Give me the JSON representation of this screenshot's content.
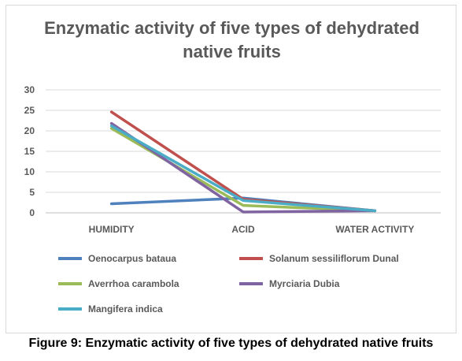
{
  "chart_data": {
    "type": "line",
    "title_lines": [
      "Enzymatic activity of five types of dehydrated",
      "native fruits"
    ],
    "categories": [
      "HUMIDITY",
      "ACID",
      "WATER ACTIVITY"
    ],
    "ylim": [
      0,
      30
    ],
    "yticks": [
      "0",
      "5",
      "10",
      "15",
      "20",
      "25",
      "30"
    ],
    "grid": true,
    "legend_position": "bottom",
    "series": [
      {
        "name": "Oenocarpus bataua",
        "color": "#4f81bd",
        "values": [
          2.2,
          3.6,
          0.5
        ]
      },
      {
        "name": "Solanum sessiliflorum Dunal",
        "color": "#c0504d",
        "values": [
          24.6,
          3.3,
          0.5
        ]
      },
      {
        "name": "Averrhoa carambola",
        "color": "#9bbb59",
        "values": [
          20.6,
          1.8,
          0.5
        ]
      },
      {
        "name": "Myrciaria Dubia",
        "color": "#8064a2",
        "values": [
          21.8,
          0.2,
          0.5
        ]
      },
      {
        "name": "Mangifera indica",
        "color": "#4bacc6",
        "values": [
          21.2,
          3.0,
          0.5
        ]
      }
    ]
  },
  "caption": "Figure 9: Enzymatic activity of five types of dehydrated native fruits"
}
